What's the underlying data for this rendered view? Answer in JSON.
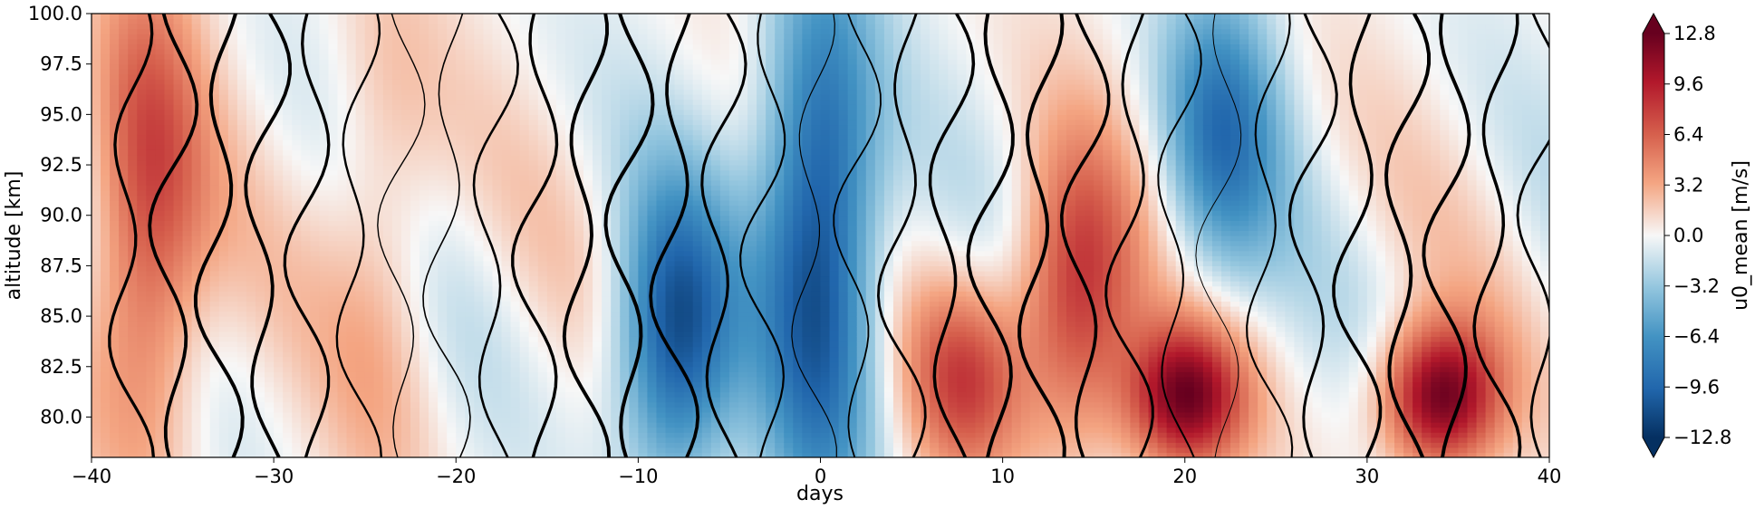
{
  "chart_data": {
    "type": "heatmap",
    "subtype": "filled contour with overlaid contour lines",
    "title": "",
    "xlabel": "days",
    "ylabel": "altitude [km]",
    "xlim": [
      -40,
      40
    ],
    "ylim": [
      78,
      100
    ],
    "x_ticks": [
      -40,
      -30,
      -20,
      -10,
      0,
      10,
      20,
      30,
      40
    ],
    "x_tick_labels": [
      "−40",
      "−30",
      "−20",
      "−10",
      "0",
      "10",
      "20",
      "30",
      "40"
    ],
    "y_ticks": [
      80,
      82.5,
      85,
      87.5,
      90,
      92.5,
      95,
      97.5,
      100
    ],
    "y_tick_labels": [
      "80.0",
      "82.5",
      "85.0",
      "87.5",
      "90.0",
      "92.5",
      "95.0",
      "97.5",
      "100.0"
    ],
    "colorbar": {
      "label": "u0_mean [m/s]",
      "colormap": "RdBu_r",
      "range": [
        -12.8,
        12.8
      ],
      "extend": "both",
      "ticks": [
        12.8,
        9.6,
        6.4,
        3.2,
        0.0,
        -3.2,
        -6.4,
        -9.6,
        -12.8
      ],
      "tick_labels": [
        "12.8",
        "9.6",
        "6.4",
        "3.2",
        "0.0",
        "−3.2",
        "−6.4",
        "−9.6",
        "−12.8"
      ]
    },
    "grid": false,
    "features": [
      {
        "day": -37,
        "altitude_range": [
          80,
          100
        ],
        "u0_mean": 8,
        "note": "positive (red) band"
      },
      {
        "day": -24,
        "altitude_range": [
          78,
          100
        ],
        "u0_mean": 3,
        "note": "weak positive band"
      },
      {
        "day": -8,
        "altitude_range": [
          78,
          90
        ],
        "u0_mean": -11,
        "note": "negative (blue) region"
      },
      {
        "day": 0,
        "altitude_range": [
          78,
          100
        ],
        "u0_mean": -12,
        "note": "strongest negative column"
      },
      {
        "day": 8,
        "altitude_range": [
          78,
          86
        ],
        "u0_mean": 7,
        "note": "positive lower altitudes"
      },
      {
        "day": 14,
        "altitude_range": [
          80,
          92
        ],
        "u0_mean": 9,
        "note": "positive band"
      },
      {
        "day": 20,
        "altitude_range": [
          78,
          84
        ],
        "u0_mean": 12,
        "note": "strong positive"
      },
      {
        "day": 22,
        "altitude_range": [
          88,
          100
        ],
        "u0_mean": -8,
        "note": "negative upper altitudes"
      },
      {
        "day": 34,
        "altitude_range": [
          78,
          84
        ],
        "u0_mean": 12.8,
        "note": "strongest positive"
      }
    ]
  }
}
